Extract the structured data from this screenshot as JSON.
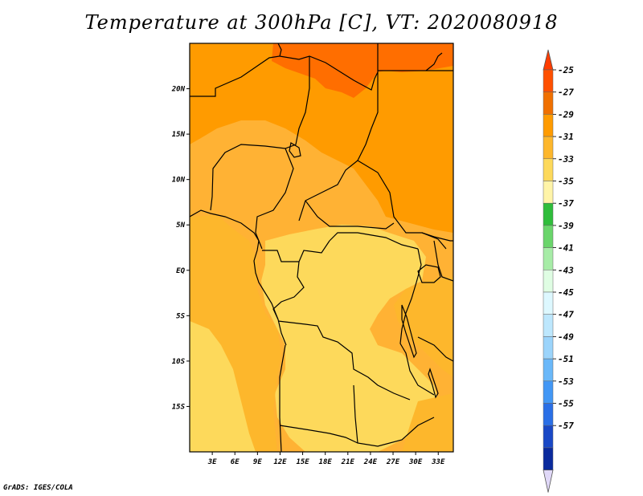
{
  "title": "Temperature at 300hPa [C], VT: 2020080918",
  "credit": "GrADS: IGES/COLA",
  "map": {
    "projection": "latlon",
    "lon_range": [
      0,
      35
    ],
    "lat_range": [
      -20,
      25
    ],
    "lon_ticks": [
      "3E",
      "6E",
      "9E",
      "12E",
      "15E",
      "18E",
      "21E",
      "24E",
      "27E",
      "30E",
      "33E"
    ],
    "lat_ticks": [
      "20N",
      "15N",
      "10N",
      "5N",
      "EQ",
      "5S",
      "10S",
      "15S"
    ]
  },
  "colorbar": {
    "labels": [
      "-25",
      "-27",
      "-29",
      "-31",
      "-33",
      "-35",
      "-37",
      "-39",
      "-41",
      "-43",
      "-45",
      "-47",
      "-49",
      "-51",
      "-53",
      "-55",
      "-57"
    ],
    "colors": [
      "#ff5000",
      "#f07000",
      "#ff9b00",
      "#fdb72c",
      "#fdd95b",
      "#fff4a8",
      "#2fbd3b",
      "#6ad56b",
      "#a7eca7",
      "#dffde3",
      "#ddf8ff",
      "#bde7fd",
      "#9bd4fb",
      "#6ab8f9",
      "#4297f5",
      "#2a6fe6",
      "#1948c6",
      "#0a2a9d",
      "#04106b",
      "#e0d8f8"
    ],
    "top_arrow_color": "#ff3c00",
    "bottom_arrow_color": "#e0d8f8"
  }
}
